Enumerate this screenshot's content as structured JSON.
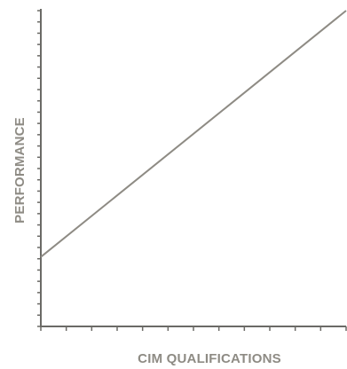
{
  "chart_data": {
    "type": "line",
    "title": "",
    "xlabel": "CIM QUALIFICATIONS",
    "ylabel": "PERFORMANCE",
    "x_tick_count": 13,
    "y_tick_count": 29,
    "tick_labels_shown": false,
    "grid": false,
    "legend": "none",
    "xlim": [
      0,
      1
    ],
    "ylim": [
      0,
      1
    ],
    "series": [
      {
        "x": [
          0,
          1
        ],
        "y": [
          0.22,
          1.0
        ]
      }
    ],
    "colors": {
      "axis": "#6b6a66",
      "line": "#8e8b84",
      "label": "#8e8b84"
    }
  }
}
